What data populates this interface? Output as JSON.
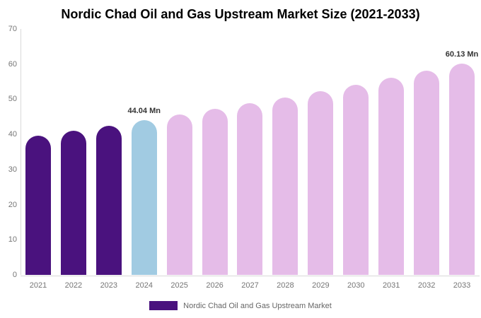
{
  "chart_data": {
    "type": "bar",
    "title": "Nordic Chad Oil and Gas Upstream Market Size (2021-2033)",
    "categories": [
      "2021",
      "2022",
      "2023",
      "2024",
      "2025",
      "2026",
      "2027",
      "2028",
      "2029",
      "2030",
      "2031",
      "2032",
      "2033"
    ],
    "values": [
      39.7,
      41.1,
      42.54,
      44.04,
      45.59,
      47.19,
      48.85,
      50.57,
      52.35,
      54.2,
      56.11,
      58.08,
      60.13
    ],
    "bar_colors": [
      "#4A127E",
      "#4A127E",
      "#4A127E",
      "#A1CBE2",
      "#E5BCE8",
      "#E5BCE8",
      "#E5BCE8",
      "#E5BCE8",
      "#E5BCE8",
      "#E5BCE8",
      "#E5BCE8",
      "#E5BCE8",
      "#E5BCE8"
    ],
    "annotations": [
      {
        "index": 3,
        "text": "44.04 Mn"
      },
      {
        "index": 12,
        "text": "60.13 Mn"
      }
    ],
    "xlabel": "",
    "ylabel": "",
    "ylim": [
      0,
      70
    ],
    "yticks": [
      0,
      10,
      20,
      30,
      40,
      50,
      60,
      70
    ],
    "grid": false,
    "legend_position": "bottom",
    "colors": {
      "historical_bar": "#4A127E",
      "current_year_bar": "#A1CBE2",
      "forecast_bar": "#E5BCE8",
      "axis_line": "#D8D8D8",
      "tick_label": "#757575",
      "data_label": "#333333",
      "title": "#000000"
    }
  },
  "legend": {
    "label": "Nordic Chad Oil and Gas Upstream Market",
    "swatch_color": "#4A127E"
  }
}
